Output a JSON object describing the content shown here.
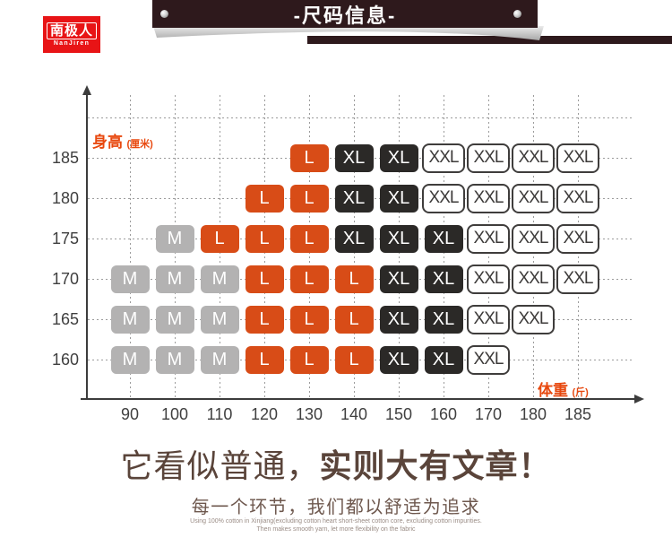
{
  "brand": {
    "name_cn": "南极人",
    "name_en": "NanJiren"
  },
  "header": {
    "title": "-尺码信息-"
  },
  "chart_data": {
    "type": "heatmap",
    "title": "尺码信息",
    "x_label": "体重",
    "x_unit": "(斤)",
    "y_label": "身高",
    "y_unit": "(厘米)",
    "x_ticks": [
      90,
      100,
      110,
      120,
      130,
      140,
      150,
      160,
      170,
      180,
      185
    ],
    "y_ticks": [
      185,
      180,
      175,
      170,
      165,
      160
    ],
    "legend": [
      "M",
      "L",
      "XL",
      "XXL"
    ],
    "grid": "dashed",
    "rows": [
      {
        "height": 185,
        "cells": [
          {
            "weight": 130,
            "size": "L"
          },
          {
            "weight": 140,
            "size": "XL"
          },
          {
            "weight": 150,
            "size": "XL"
          },
          {
            "weight": 160,
            "size": "XXL"
          },
          {
            "weight": 170,
            "size": "XXL"
          },
          {
            "weight": 180,
            "size": "XXL"
          },
          {
            "weight": 185,
            "size": "XXL"
          }
        ]
      },
      {
        "height": 180,
        "cells": [
          {
            "weight": 120,
            "size": "L"
          },
          {
            "weight": 130,
            "size": "L"
          },
          {
            "weight": 140,
            "size": "XL"
          },
          {
            "weight": 150,
            "size": "XL"
          },
          {
            "weight": 160,
            "size": "XXL"
          },
          {
            "weight": 170,
            "size": "XXL"
          },
          {
            "weight": 180,
            "size": "XXL"
          },
          {
            "weight": 185,
            "size": "XXL"
          }
        ]
      },
      {
        "height": 175,
        "cells": [
          {
            "weight": 100,
            "size": "M"
          },
          {
            "weight": 110,
            "size": "L"
          },
          {
            "weight": 120,
            "size": "L"
          },
          {
            "weight": 130,
            "size": "L"
          },
          {
            "weight": 140,
            "size": "XL"
          },
          {
            "weight": 150,
            "size": "XL"
          },
          {
            "weight": 160,
            "size": "XL"
          },
          {
            "weight": 170,
            "size": "XXL"
          },
          {
            "weight": 180,
            "size": "XXL"
          },
          {
            "weight": 185,
            "size": "XXL"
          }
        ]
      },
      {
        "height": 170,
        "cells": [
          {
            "weight": 90,
            "size": "M"
          },
          {
            "weight": 100,
            "size": "M"
          },
          {
            "weight": 110,
            "size": "M"
          },
          {
            "weight": 120,
            "size": "L"
          },
          {
            "weight": 130,
            "size": "L"
          },
          {
            "weight": 140,
            "size": "L"
          },
          {
            "weight": 150,
            "size": "XL"
          },
          {
            "weight": 160,
            "size": "XL"
          },
          {
            "weight": 170,
            "size": "XXL"
          },
          {
            "weight": 180,
            "size": "XXL"
          },
          {
            "weight": 185,
            "size": "XXL"
          }
        ]
      },
      {
        "height": 165,
        "cells": [
          {
            "weight": 90,
            "size": "M"
          },
          {
            "weight": 100,
            "size": "M"
          },
          {
            "weight": 110,
            "size": "M"
          },
          {
            "weight": 120,
            "size": "L"
          },
          {
            "weight": 130,
            "size": "L"
          },
          {
            "weight": 140,
            "size": "L"
          },
          {
            "weight": 150,
            "size": "XL"
          },
          {
            "weight": 160,
            "size": "XL"
          },
          {
            "weight": 170,
            "size": "XXL"
          },
          {
            "weight": 180,
            "size": "XXL"
          }
        ]
      },
      {
        "height": 160,
        "cells": [
          {
            "weight": 90,
            "size": "M"
          },
          {
            "weight": 100,
            "size": "M"
          },
          {
            "weight": 110,
            "size": "M"
          },
          {
            "weight": 120,
            "size": "L"
          },
          {
            "weight": 130,
            "size": "L"
          },
          {
            "weight": 140,
            "size": "L"
          },
          {
            "weight": 150,
            "size": "XL"
          },
          {
            "weight": 160,
            "size": "XL"
          },
          {
            "weight": 170,
            "size": "XXL"
          }
        ]
      }
    ]
  },
  "footer": {
    "headline_light": "它看似普通，",
    "headline_bold": "实则大有文章！",
    "subline": "每一个环节，我们都以舒适为追求",
    "fineprint_line1": "Using 100% cotton in Xinjiang(excluding cotton heart short-sheet cotton core, excluding cotton impurities.",
    "fineprint_line2": "Then makes smooth yarn, let more flexibility on the fabric"
  },
  "colors": {
    "accent_orange": "#e8480e",
    "cell_m": "#b3b2b2",
    "cell_l": "#d84c17",
    "cell_xl": "#2b2927",
    "cell_xxl_border": "#3f3d3c",
    "banner_bg": "#2e191c",
    "headline": "#5a443a",
    "grid": "#9b9b9b",
    "axis": "#3c3c3c",
    "logo_red": "#e81416"
  }
}
